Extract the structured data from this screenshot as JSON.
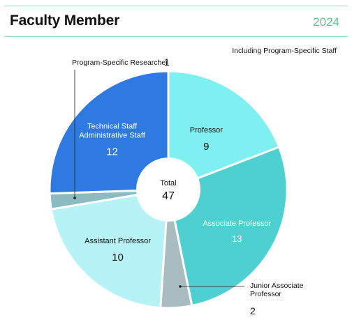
{
  "header": {
    "title": "Faculty Member",
    "year": "2024",
    "note": "Including Program-Specific Staff"
  },
  "chart_data": {
    "type": "pie",
    "title": "Faculty Member",
    "total_label": "Total",
    "total": 47,
    "slices": [
      {
        "name": "Professor",
        "label_lines": [
          "Professor"
        ],
        "value": 9,
        "color": "#7ff0f0",
        "text_color": "#111111"
      },
      {
        "name": "Associate Professor",
        "label_lines": [
          "Associate Professor"
        ],
        "value": 13,
        "color": "#4fd0d0",
        "text_color": "#ffffff"
      },
      {
        "name": "Junior Associate Professor",
        "label_lines": [
          "Junior Associate",
          "Professor"
        ],
        "value": 2,
        "color": "#aabcc0",
        "text_color": "#111111"
      },
      {
        "name": "Assistant Professor",
        "label_lines": [
          "Assistant Professor"
        ],
        "value": 10,
        "color": "#b6f2f6",
        "text_color": "#111111"
      },
      {
        "name": "Program-Specific Researcher",
        "label_lines": [
          "Program-Specific Researcher"
        ],
        "value": 1,
        "color": "#8cbcc2",
        "text_color": "#111111"
      },
      {
        "name": "Technical Staff Administrative Staff",
        "label_lines": [
          "Technical Staff",
          "Administrative Staff"
        ],
        "value": 12,
        "color": "#2f7ae0",
        "text_color": "#ffffff"
      }
    ]
  }
}
